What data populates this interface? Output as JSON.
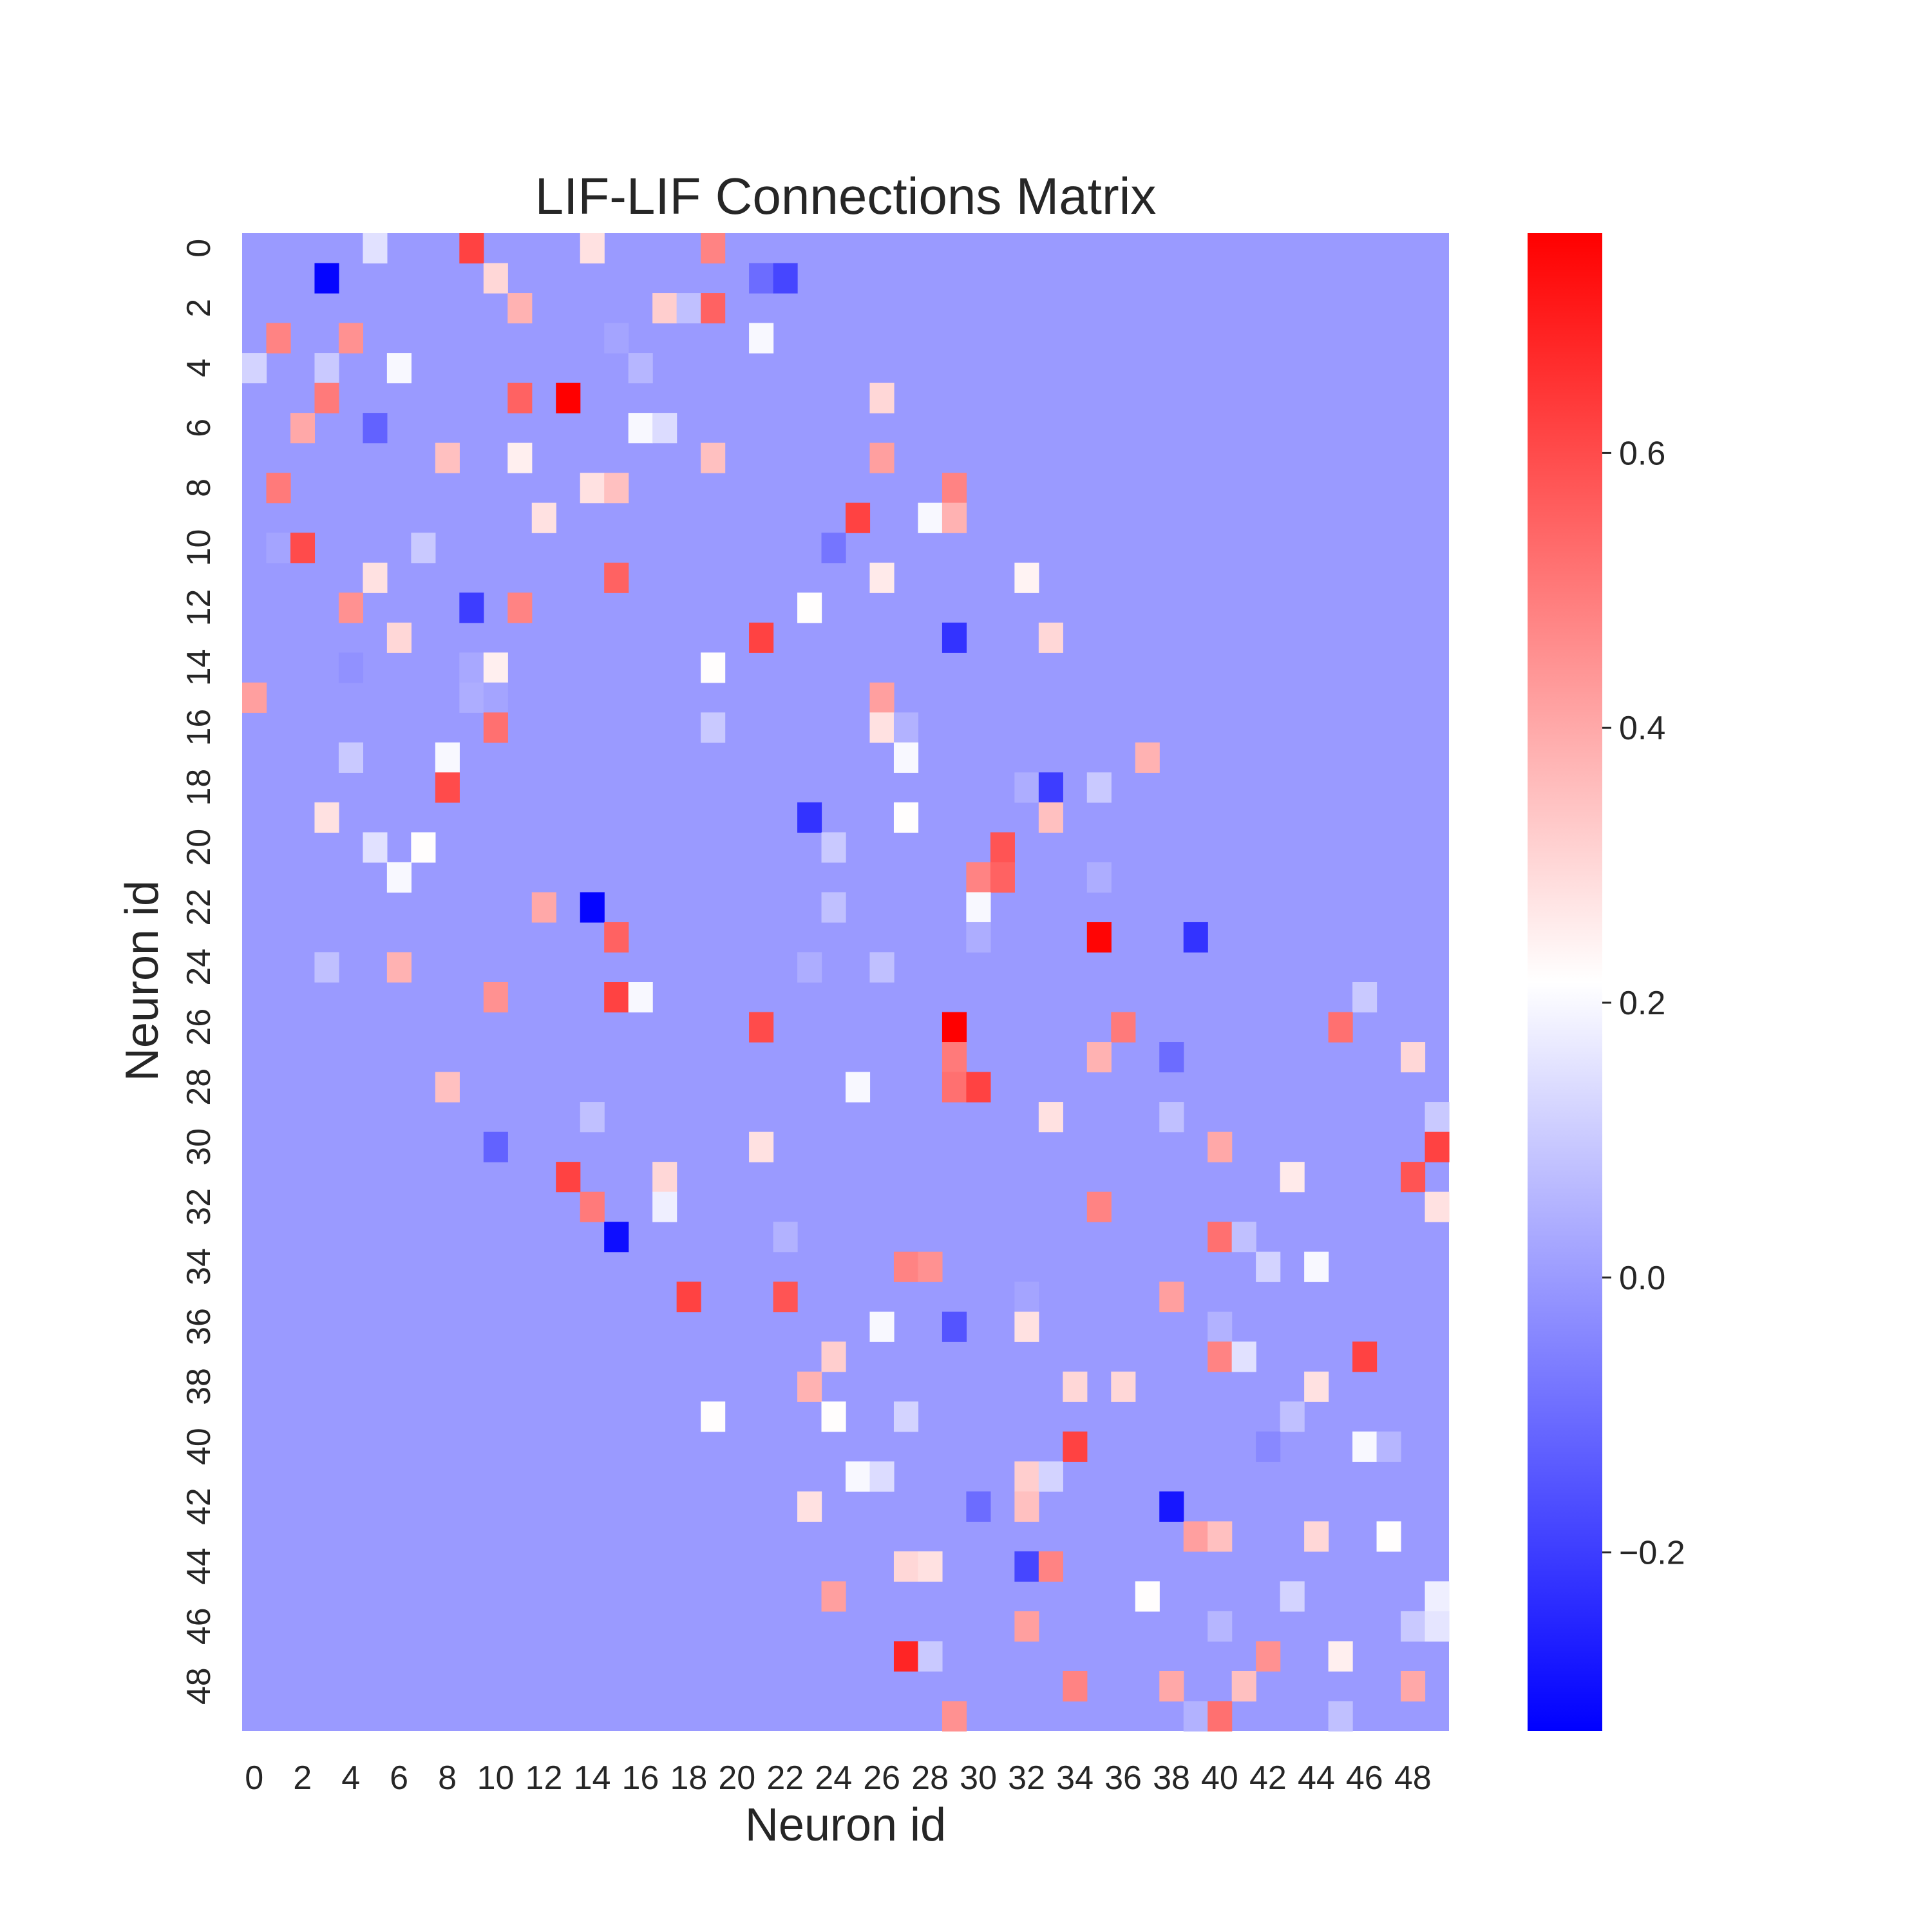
{
  "chart_data": {
    "type": "heatmap",
    "title": "LIF-LIF Connections Matrix",
    "xlabel": "Neuron id",
    "ylabel": "Neuron id",
    "x_tick_labels": [
      "0",
      "2",
      "4",
      "6",
      "8",
      "10",
      "12",
      "14",
      "16",
      "18",
      "20",
      "22",
      "24",
      "26",
      "28",
      "30",
      "32",
      "34",
      "36",
      "38",
      "40",
      "42",
      "44",
      "46",
      "48"
    ],
    "y_tick_labels": [
      "0",
      "2",
      "4",
      "6",
      "8",
      "10",
      "12",
      "14",
      "16",
      "18",
      "20",
      "22",
      "24",
      "26",
      "28",
      "30",
      "32",
      "34",
      "36",
      "38",
      "40",
      "42",
      "44",
      "46",
      "48"
    ],
    "n_rows": 50,
    "n_cols": 50,
    "background_value": 0.0,
    "colormap": "bwr",
    "vmin": -0.33,
    "vmax": 0.76,
    "colorbar_ticks": [
      -0.2,
      0.0,
      0.2,
      0.4,
      0.6
    ],
    "colorbar_tick_labels": [
      "−0.2",
      "0.0",
      "0.2",
      "0.4",
      "0.6"
    ],
    "cells": [
      [
        0,
        5,
        0.15
      ],
      [
        0,
        9,
        0.62
      ],
      [
        0,
        14,
        0.28
      ],
      [
        0,
        19,
        0.48
      ],
      [
        1,
        3,
        -0.32
      ],
      [
        1,
        10,
        0.3
      ],
      [
        1,
        21,
        -0.1
      ],
      [
        1,
        22,
        -0.18
      ],
      [
        2,
        11,
        0.38
      ],
      [
        2,
        17,
        0.32
      ],
      [
        2,
        18,
        0.08
      ],
      [
        2,
        19,
        0.55
      ],
      [
        3,
        1,
        0.48
      ],
      [
        3,
        4,
        0.45
      ],
      [
        3,
        15,
        0.02
      ],
      [
        3,
        21,
        0.2
      ],
      [
        4,
        0,
        0.12
      ],
      [
        4,
        3,
        0.1
      ],
      [
        4,
        6,
        0.2
      ],
      [
        4,
        16,
        0.06
      ],
      [
        5,
        3,
        0.5
      ],
      [
        5,
        11,
        0.55
      ],
      [
        5,
        13,
        0.76
      ],
      [
        5,
        26,
        0.3
      ],
      [
        6,
        2,
        0.4
      ],
      [
        6,
        5,
        -0.12
      ],
      [
        6,
        16,
        0.2
      ],
      [
        6,
        17,
        0.14
      ],
      [
        7,
        8,
        0.35
      ],
      [
        7,
        11,
        0.25
      ],
      [
        7,
        19,
        0.35
      ],
      [
        7,
        26,
        0.42
      ],
      [
        8,
        1,
        0.5
      ],
      [
        8,
        14,
        0.28
      ],
      [
        8,
        15,
        0.35
      ],
      [
        8,
        29,
        0.48
      ],
      [
        9,
        12,
        0.28
      ],
      [
        9,
        25,
        0.62
      ],
      [
        9,
        28,
        0.2
      ],
      [
        9,
        29,
        0.38
      ],
      [
        10,
        1,
        0.02
      ],
      [
        10,
        2,
        0.6
      ],
      [
        10,
        7,
        0.1
      ],
      [
        10,
        24,
        -0.08
      ],
      [
        11,
        5,
        0.28
      ],
      [
        11,
        15,
        0.55
      ],
      [
        11,
        26,
        0.26
      ],
      [
        11,
        32,
        0.24
      ],
      [
        12,
        4,
        0.45
      ],
      [
        12,
        9,
        -0.2
      ],
      [
        12,
        11,
        0.48
      ],
      [
        12,
        23,
        0.22
      ],
      [
        13,
        6,
        0.3
      ],
      [
        13,
        21,
        0.62
      ],
      [
        13,
        29,
        -0.22
      ],
      [
        13,
        33,
        0.3
      ],
      [
        14,
        4,
        -0.02
      ],
      [
        14,
        9,
        0.03
      ],
      [
        14,
        10,
        0.25
      ],
      [
        14,
        19,
        0.22
      ],
      [
        15,
        0,
        0.42
      ],
      [
        15,
        9,
        0.04
      ],
      [
        15,
        10,
        0.02
      ],
      [
        15,
        26,
        0.42
      ],
      [
        16,
        10,
        0.52
      ],
      [
        16,
        19,
        0.1
      ],
      [
        16,
        26,
        0.28
      ],
      [
        16,
        27,
        0.05
      ],
      [
        17,
        4,
        0.1
      ],
      [
        17,
        8,
        0.2
      ],
      [
        17,
        27,
        0.2
      ],
      [
        17,
        37,
        0.38
      ],
      [
        18,
        8,
        0.6
      ],
      [
        18,
        32,
        0.04
      ],
      [
        18,
        33,
        -0.2
      ],
      [
        18,
        35,
        0.1
      ],
      [
        19,
        3,
        0.28
      ],
      [
        19,
        23,
        -0.22
      ],
      [
        19,
        27,
        0.22
      ],
      [
        19,
        33,
        0.35
      ],
      [
        20,
        5,
        0.15
      ],
      [
        20,
        7,
        0.22
      ],
      [
        20,
        24,
        0.1
      ],
      [
        20,
        31,
        0.58
      ],
      [
        21,
        6,
        0.2
      ],
      [
        21,
        30,
        0.48
      ],
      [
        21,
        31,
        0.55
      ],
      [
        21,
        35,
        0.04
      ],
      [
        22,
        12,
        0.4
      ],
      [
        22,
        14,
        -0.32
      ],
      [
        22,
        24,
        0.08
      ],
      [
        22,
        30,
        0.2
      ],
      [
        23,
        15,
        0.55
      ],
      [
        23,
        30,
        0.04
      ],
      [
        23,
        35,
        0.75
      ],
      [
        23,
        39,
        -0.22
      ],
      [
        24,
        3,
        0.08
      ],
      [
        24,
        6,
        0.38
      ],
      [
        24,
        23,
        0.04
      ],
      [
        24,
        26,
        0.08
      ],
      [
        25,
        10,
        0.45
      ],
      [
        25,
        15,
        0.62
      ],
      [
        25,
        16,
        0.2
      ],
      [
        25,
        46,
        0.1
      ],
      [
        26,
        21,
        0.6
      ],
      [
        26,
        29,
        0.76
      ],
      [
        26,
        36,
        0.5
      ],
      [
        26,
        45,
        0.52
      ],
      [
        27,
        29,
        0.5
      ],
      [
        27,
        35,
        0.38
      ],
      [
        27,
        38,
        -0.1
      ],
      [
        27,
        48,
        0.3
      ],
      [
        28,
        8,
        0.35
      ],
      [
        28,
        25,
        0.2
      ],
      [
        28,
        29,
        0.52
      ],
      [
        28,
        30,
        0.62
      ],
      [
        29,
        14,
        0.08
      ],
      [
        29,
        33,
        0.28
      ],
      [
        29,
        38,
        0.08
      ],
      [
        29,
        49,
        0.1
      ],
      [
        30,
        10,
        -0.12
      ],
      [
        30,
        21,
        0.28
      ],
      [
        30,
        40,
        0.4
      ],
      [
        30,
        49,
        0.62
      ],
      [
        31,
        13,
        0.62
      ],
      [
        31,
        17,
        0.3
      ],
      [
        31,
        43,
        0.26
      ],
      [
        31,
        48,
        0.58
      ],
      [
        32,
        14,
        0.5
      ],
      [
        32,
        17,
        0.18
      ],
      [
        32,
        35,
        0.48
      ],
      [
        32,
        49,
        0.28
      ],
      [
        33,
        15,
        -0.3
      ],
      [
        33,
        22,
        0.05
      ],
      [
        33,
        40,
        0.52
      ],
      [
        33,
        41,
        0.08
      ],
      [
        34,
        27,
        0.48
      ],
      [
        34,
        28,
        0.45
      ],
      [
        34,
        42,
        0.12
      ],
      [
        34,
        44,
        0.2
      ],
      [
        35,
        18,
        0.62
      ],
      [
        35,
        22,
        0.58
      ],
      [
        35,
        32,
        0.02
      ],
      [
        35,
        38,
        0.42
      ],
      [
        36,
        26,
        0.2
      ],
      [
        36,
        29,
        -0.15
      ],
      [
        36,
        32,
        0.28
      ],
      [
        36,
        40,
        0.05
      ],
      [
        37,
        24,
        0.32
      ],
      [
        37,
        40,
        0.48
      ],
      [
        37,
        41,
        0.15
      ],
      [
        37,
        46,
        0.62
      ],
      [
        38,
        23,
        0.38
      ],
      [
        38,
        34,
        0.3
      ],
      [
        38,
        36,
        0.3
      ],
      [
        38,
        44,
        0.28
      ],
      [
        39,
        19,
        0.22
      ],
      [
        39,
        24,
        0.22
      ],
      [
        39,
        27,
        0.12
      ],
      [
        39,
        43,
        0.08
      ],
      [
        40,
        34,
        0.62
      ],
      [
        40,
        42,
        -0.04
      ],
      [
        40,
        46,
        0.2
      ],
      [
        40,
        47,
        0.06
      ],
      [
        41,
        25,
        0.2
      ],
      [
        41,
        26,
        0.14
      ],
      [
        41,
        32,
        0.32
      ],
      [
        41,
        33,
        0.12
      ],
      [
        42,
        23,
        0.28
      ],
      [
        42,
        30,
        -0.1
      ],
      [
        42,
        32,
        0.35
      ],
      [
        42,
        38,
        -0.28
      ],
      [
        43,
        39,
        0.42
      ],
      [
        43,
        40,
        0.35
      ],
      [
        43,
        44,
        0.3
      ],
      [
        43,
        47,
        0.22
      ],
      [
        44,
        27,
        0.3
      ],
      [
        44,
        28,
        0.28
      ],
      [
        44,
        32,
        -0.18
      ],
      [
        44,
        33,
        0.48
      ],
      [
        45,
        24,
        0.42
      ],
      [
        45,
        37,
        0.22
      ],
      [
        45,
        43,
        0.12
      ],
      [
        45,
        49,
        0.18
      ],
      [
        46,
        32,
        0.42
      ],
      [
        46,
        40,
        0.06
      ],
      [
        46,
        48,
        0.1
      ],
      [
        46,
        49,
        0.16
      ],
      [
        47,
        27,
        0.68
      ],
      [
        47,
        28,
        0.1
      ],
      [
        47,
        42,
        0.45
      ],
      [
        47,
        45,
        0.25
      ],
      [
        48,
        34,
        0.48
      ],
      [
        48,
        38,
        0.4
      ],
      [
        48,
        41,
        0.35
      ],
      [
        48,
        48,
        0.4
      ],
      [
        49,
        29,
        0.45
      ],
      [
        49,
        39,
        0.05
      ],
      [
        49,
        40,
        0.52
      ],
      [
        49,
        45,
        0.08
      ]
    ]
  }
}
